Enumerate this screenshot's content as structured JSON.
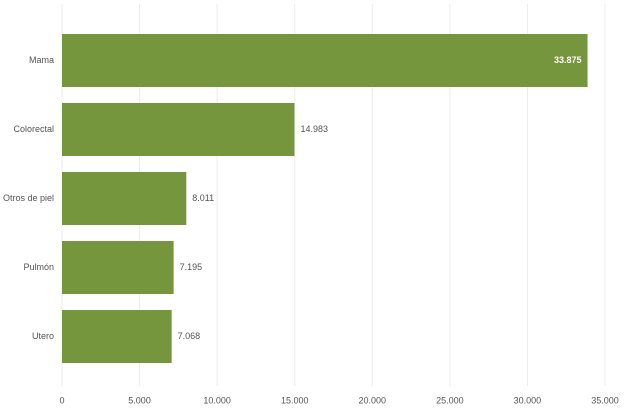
{
  "chart_data": {
    "type": "bar",
    "orientation": "horizontal",
    "categories": [
      "Mama",
      "Colorectal",
      "Otros de piel",
      "Pulmón",
      "Utero"
    ],
    "values": [
      33875,
      14983,
      8011,
      7195,
      7068
    ],
    "value_labels": [
      "33.875",
      "14.983",
      "8.011",
      "7.195",
      "7.068"
    ],
    "color": "#76963e",
    "xlim": [
      0,
      35000
    ],
    "xticks": [
      0,
      {
        "value": 5000,
        "label": "5.000"
      },
      {
        "value": 10000,
        "label": "10.000"
      },
      {
        "value": 15000,
        "label": "15.000"
      },
      {
        "value": 20000,
        "label": "20.000"
      },
      {
        "value": 25000,
        "label": "25.000"
      },
      {
        "value": 30000,
        "label": "30.000"
      },
      {
        "value": 35000,
        "label": "35.000"
      }
    ],
    "grid": true
  }
}
